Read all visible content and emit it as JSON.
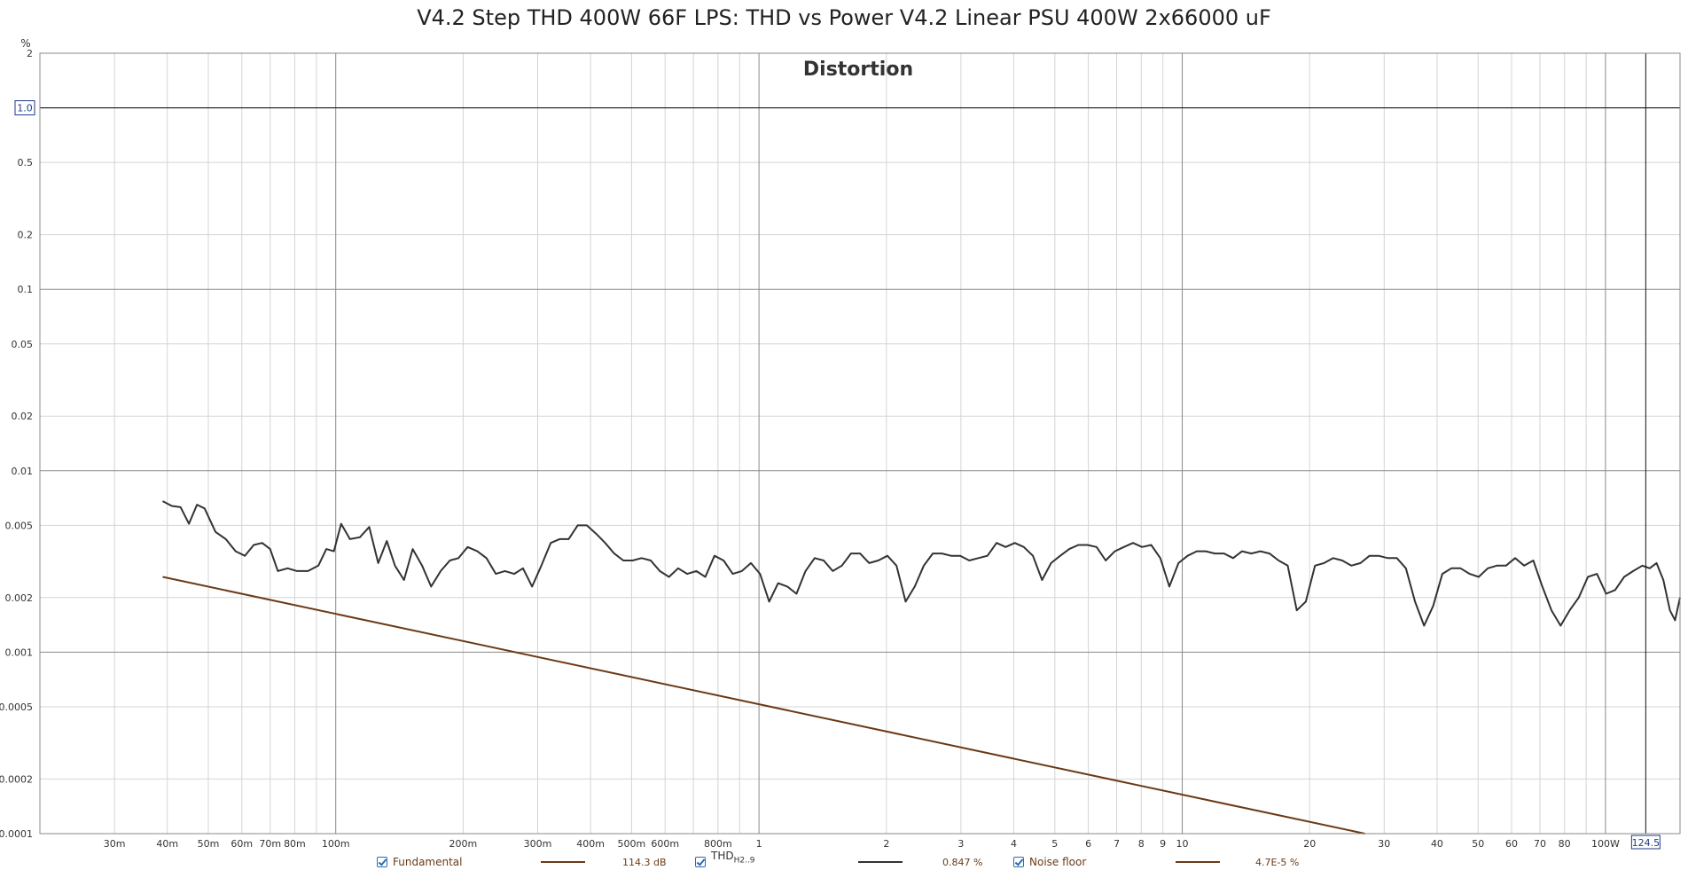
{
  "title": "V4.2 Step THD 400W 66F LPS: THD vs Power V4.2 Linear PSU 400W 2x66000 uF",
  "chart_data": {
    "type": "line",
    "title": "V4.2 Step THD 400W 66F LPS: THD vs Power V4.2 Linear PSU 400W 2x66000 uF",
    "subtitle": "Distortion",
    "xlabel": "",
    "ylabel": "%",
    "x_scale": "log",
    "y_scale": "log",
    "xlim": [
      0.02,
      150
    ],
    "ylim": [
      0.0001,
      2
    ],
    "grid": true,
    "x_ticks": [
      {
        "v": 0.03,
        "label": "30m"
      },
      {
        "v": 0.04,
        "label": "40m"
      },
      {
        "v": 0.05,
        "label": "50m"
      },
      {
        "v": 0.06,
        "label": "60m"
      },
      {
        "v": 0.07,
        "label": "70m"
      },
      {
        "v": 0.08,
        "label": "80m"
      },
      {
        "v": 0.1,
        "label": "100m"
      },
      {
        "v": 0.2,
        "label": "200m"
      },
      {
        "v": 0.3,
        "label": "300m"
      },
      {
        "v": 0.4,
        "label": "400m"
      },
      {
        "v": 0.5,
        "label": "500m"
      },
      {
        "v": 0.6,
        "label": "600m"
      },
      {
        "v": 0.8,
        "label": "800m"
      },
      {
        "v": 1,
        "label": "1"
      },
      {
        "v": 2,
        "label": "2"
      },
      {
        "v": 3,
        "label": "3"
      },
      {
        "v": 4,
        "label": "4"
      },
      {
        "v": 5,
        "label": "5"
      },
      {
        "v": 6,
        "label": "6"
      },
      {
        "v": 7,
        "label": "7"
      },
      {
        "v": 8,
        "label": "8"
      },
      {
        "v": 9,
        "label": "9"
      },
      {
        "v": 10,
        "label": "10"
      },
      {
        "v": 20,
        "label": "20"
      },
      {
        "v": 30,
        "label": "30"
      },
      {
        "v": 40,
        "label": "40"
      },
      {
        "v": 50,
        "label": "50"
      },
      {
        "v": 60,
        "label": "60"
      },
      {
        "v": 70,
        "label": "70"
      },
      {
        "v": 80,
        "label": "80"
      },
      {
        "v": 100,
        "label": "100W"
      }
    ],
    "x_minor_grid": [
      0.03,
      0.04,
      0.05,
      0.06,
      0.07,
      0.08,
      0.09,
      0.2,
      0.3,
      0.4,
      0.5,
      0.6,
      0.7,
      0.8,
      0.9,
      2,
      3,
      4,
      5,
      6,
      7,
      8,
      9,
      20,
      30,
      40,
      50,
      60,
      70,
      80,
      90
    ],
    "x_major_grid": [
      0.1,
      1,
      10,
      100
    ],
    "y_ticks": [
      {
        "v": 2,
        "label": "2"
      },
      {
        "v": 1,
        "label": "1.0"
      },
      {
        "v": 0.5,
        "label": "0.5"
      },
      {
        "v": 0.2,
        "label": "0.2"
      },
      {
        "v": 0.1,
        "label": "0.1"
      },
      {
        "v": 0.05,
        "label": "0.05"
      },
      {
        "v": 0.02,
        "label": "0.02"
      },
      {
        "v": 0.01,
        "label": "0.01"
      },
      {
        "v": 0.005,
        "label": "0.005"
      },
      {
        "v": 0.002,
        "label": "0.002"
      },
      {
        "v": 0.001,
        "label": "0.001"
      },
      {
        "v": 0.0005,
        "label": "0.0005"
      },
      {
        "v": 0.0002,
        "label": "0.0002"
      },
      {
        "v": 0.0001,
        "label": "0.0001"
      }
    ],
    "y_major_grid": [
      1,
      0.1,
      0.01,
      0.001
    ],
    "cursor": {
      "x": 124.5,
      "x_label": "124.5",
      "y": 1,
      "y_label": "1.0"
    },
    "series": [
      {
        "name": "THD",
        "name_sub": "H2..9",
        "color": "#333333",
        "readout": "0.847 %",
        "points": [
          [
            0.039,
            0.0068
          ],
          [
            0.041,
            0.0064
          ],
          [
            0.043,
            0.0063
          ],
          [
            0.045,
            0.0051
          ],
          [
            0.047,
            0.0065
          ],
          [
            0.049,
            0.0062
          ],
          [
            0.052,
            0.0046
          ],
          [
            0.055,
            0.0042
          ],
          [
            0.058,
            0.0036
          ],
          [
            0.061,
            0.0034
          ],
          [
            0.064,
            0.0039
          ],
          [
            0.067,
            0.004
          ],
          [
            0.07,
            0.0037
          ],
          [
            0.073,
            0.0028
          ],
          [
            0.077,
            0.0029
          ],
          [
            0.081,
            0.0028
          ],
          [
            0.086,
            0.0028
          ],
          [
            0.091,
            0.003
          ],
          [
            0.095,
            0.0037
          ],
          [
            0.099,
            0.0036
          ],
          [
            0.103,
            0.0051
          ],
          [
            0.108,
            0.0042
          ],
          [
            0.114,
            0.0043
          ],
          [
            0.12,
            0.0049
          ],
          [
            0.126,
            0.0031
          ],
          [
            0.132,
            0.0041
          ],
          [
            0.138,
            0.003
          ],
          [
            0.145,
            0.0025
          ],
          [
            0.152,
            0.0037
          ],
          [
            0.16,
            0.003
          ],
          [
            0.168,
            0.0023
          ],
          [
            0.177,
            0.0028
          ],
          [
            0.186,
            0.0032
          ],
          [
            0.195,
            0.0033
          ],
          [
            0.205,
            0.0038
          ],
          [
            0.216,
            0.0036
          ],
          [
            0.227,
            0.0033
          ],
          [
            0.239,
            0.0027
          ],
          [
            0.251,
            0.0028
          ],
          [
            0.264,
            0.0027
          ],
          [
            0.277,
            0.0029
          ],
          [
            0.291,
            0.0023
          ],
          [
            0.306,
            0.003
          ],
          [
            0.322,
            0.004
          ],
          [
            0.338,
            0.0042
          ],
          [
            0.355,
            0.0042
          ],
          [
            0.373,
            0.005
          ],
          [
            0.392,
            0.005
          ],
          [
            0.412,
            0.0045
          ],
          [
            0.433,
            0.004
          ],
          [
            0.455,
            0.0035
          ],
          [
            0.478,
            0.0032
          ],
          [
            0.503,
            0.0032
          ],
          [
            0.528,
            0.0033
          ],
          [
            0.555,
            0.0032
          ],
          [
            0.583,
            0.0028
          ],
          [
            0.613,
            0.0026
          ],
          [
            0.644,
            0.0029
          ],
          [
            0.677,
            0.0027
          ],
          [
            0.711,
            0.0028
          ],
          [
            0.747,
            0.0026
          ],
          [
            0.785,
            0.0034
          ],
          [
            0.825,
            0.0032
          ],
          [
            0.867,
            0.0027
          ],
          [
            0.911,
            0.0028
          ],
          [
            0.957,
            0.0031
          ],
          [
            1.006,
            0.0027
          ],
          [
            1.057,
            0.0019
          ],
          [
            1.11,
            0.0024
          ],
          [
            1.167,
            0.0023
          ],
          [
            1.226,
            0.0021
          ],
          [
            1.288,
            0.0028
          ],
          [
            1.354,
            0.0033
          ],
          [
            1.422,
            0.0032
          ],
          [
            1.494,
            0.0028
          ],
          [
            1.57,
            0.003
          ],
          [
            1.65,
            0.0035
          ],
          [
            1.733,
            0.0035
          ],
          [
            1.821,
            0.0031
          ],
          [
            1.914,
            0.0032
          ],
          [
            2.011,
            0.0034
          ],
          [
            2.113,
            0.003
          ],
          [
            2.22,
            0.0019
          ],
          [
            2.333,
            0.0023
          ],
          [
            2.451,
            0.003
          ],
          [
            2.575,
            0.0035
          ],
          [
            2.706,
            0.0035
          ],
          [
            2.843,
            0.0034
          ],
          [
            2.988,
            0.0034
          ],
          [
            3.139,
            0.0032
          ],
          [
            3.298,
            0.0033
          ],
          [
            3.466,
            0.0034
          ],
          [
            3.642,
            0.004
          ],
          [
            3.826,
            0.0038
          ],
          [
            4.02,
            0.004
          ],
          [
            4.224,
            0.0038
          ],
          [
            4.439,
            0.0034
          ],
          [
            4.664,
            0.0025
          ],
          [
            4.9,
            0.0031
          ],
          [
            5.149,
            0.0034
          ],
          [
            5.41,
            0.0037
          ],
          [
            5.685,
            0.0039
          ],
          [
            5.973,
            0.0039
          ],
          [
            6.276,
            0.0038
          ],
          [
            6.595,
            0.0032
          ],
          [
            6.929,
            0.0036
          ],
          [
            7.281,
            0.0038
          ],
          [
            7.65,
            0.004
          ],
          [
            8.038,
            0.0038
          ],
          [
            8.446,
            0.0039
          ],
          [
            8.875,
            0.0033
          ],
          [
            9.325,
            0.0023
          ],
          [
            9.798,
            0.0031
          ],
          [
            10.3,
            0.0034
          ],
          [
            10.82,
            0.0036
          ],
          [
            11.37,
            0.0036
          ],
          [
            11.94,
            0.0035
          ],
          [
            12.55,
            0.0035
          ],
          [
            13.19,
            0.0033
          ],
          [
            13.85,
            0.0036
          ],
          [
            14.56,
            0.0035
          ],
          [
            15.3,
            0.0036
          ],
          [
            16.07,
            0.0035
          ],
          [
            16.89,
            0.0032
          ],
          [
            17.75,
            0.003
          ],
          [
            18.65,
            0.0017
          ],
          [
            19.59,
            0.0019
          ],
          [
            20.59,
            0.003
          ],
          [
            21.63,
            0.0031
          ],
          [
            22.73,
            0.0033
          ],
          [
            23.88,
            0.0032
          ],
          [
            25.09,
            0.003
          ],
          [
            26.37,
            0.0031
          ],
          [
            27.7,
            0.0034
          ],
          [
            29.11,
            0.0034
          ],
          [
            30.59,
            0.0033
          ],
          [
            32.14,
            0.0033
          ],
          [
            33.77,
            0.0029
          ],
          [
            35.48,
            0.0019
          ],
          [
            37.28,
            0.0014
          ],
          [
            39.17,
            0.0018
          ],
          [
            41.16,
            0.0027
          ],
          [
            43.25,
            0.0029
          ],
          [
            45.44,
            0.0029
          ],
          [
            47.75,
            0.0027
          ],
          [
            50.17,
            0.0026
          ],
          [
            52.71,
            0.0029
          ],
          [
            55.39,
            0.003
          ],
          [
            58.2,
            0.003
          ],
          [
            61.15,
            0.0033
          ],
          [
            64.25,
            0.003
          ],
          [
            67.51,
            0.0032
          ],
          [
            70.94,
            0.0023
          ],
          [
            74.54,
            0.0017
          ],
          [
            78.32,
            0.0014
          ],
          [
            82.29,
            0.0017
          ],
          [
            86.47,
            0.002
          ],
          [
            90.86,
            0.0026
          ],
          [
            95.47,
            0.0027
          ],
          [
            100.3,
            0.0021
          ],
          [
            105.4,
            0.0022
          ],
          [
            110.7,
            0.0026
          ],
          [
            116.3,
            0.0028
          ],
          [
            122.2,
            0.003
          ],
          [
            127.2,
            0.0029
          ],
          [
            132.0,
            0.0031
          ],
          [
            137.0,
            0.0025
          ],
          [
            142.0,
            0.0017
          ],
          [
            146.0,
            0.0015
          ],
          [
            150.0,
            0.002
          ]
        ]
      },
      {
        "name": "Noise floor",
        "color": "#6b3a16",
        "readout": "4.7E-5 %",
        "points": [
          [
            0.039,
            0.0026
          ],
          [
            27,
            0.0001
          ]
        ]
      }
    ],
    "legend": [
      {
        "label": "Fundamental",
        "color": "#6b3a16",
        "readout": "114.3 dB"
      },
      {
        "label": "THD",
        "sub": "H2..9",
        "color": "#333333",
        "readout": "0.847 %"
      },
      {
        "label": "Noise floor",
        "color": "#6b3a16",
        "readout": "4.7E-5 %"
      }
    ]
  }
}
